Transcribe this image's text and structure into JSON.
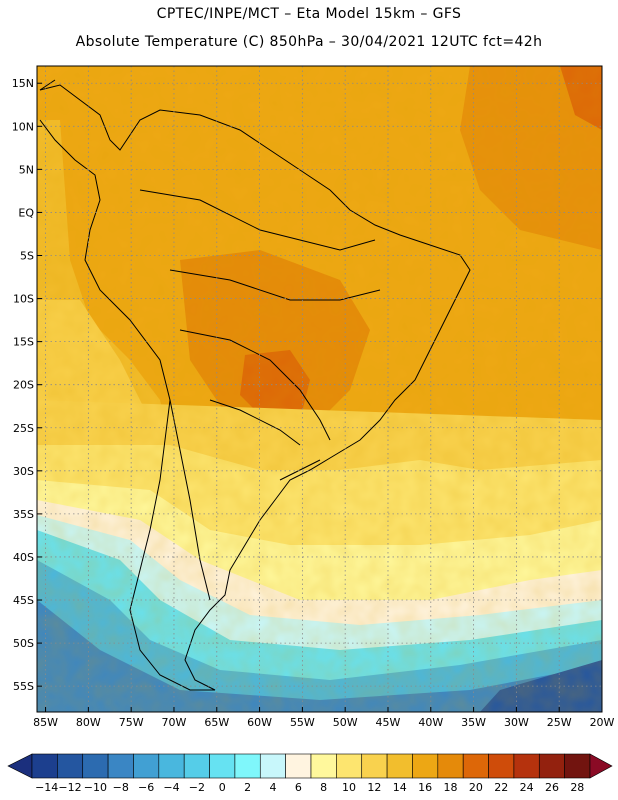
{
  "header": {
    "line1": "CPTEC/INPE/MCT –   Eta Model 15km – GFS",
    "line2": "Absolute Temperature (C) 850hPa – 30/04/2021 12UTC fct=42h"
  },
  "axes": {
    "lat_labels": [
      "15N",
      "10N",
      "5N",
      "EQ",
      "5S",
      "10S",
      "15S",
      "20S",
      "25S",
      "30S",
      "35S",
      "40S",
      "45S",
      "50S",
      "55S"
    ],
    "lon_labels": [
      "85W",
      "80W",
      "75W",
      "70W",
      "65W",
      "60W",
      "55W",
      "50W",
      "45W",
      "40W",
      "35W",
      "30W",
      "25W",
      "20W"
    ]
  },
  "colorbar": {
    "labels": [
      "-14",
      "-12",
      "-10",
      "-8",
      "-6",
      "-4",
      "-2",
      "0",
      "2",
      "4",
      "6",
      "8",
      "10",
      "12",
      "14",
      "16",
      "18",
      "20",
      "22",
      "24",
      "26",
      "28"
    ],
    "colors": [
      "#1c3f8e",
      "#2456a0",
      "#2c6bb0",
      "#3a86c4",
      "#41a0d3",
      "#49b7de",
      "#55cde8",
      "#66e2f2",
      "#7ff7fb",
      "#c8f7fb",
      "#fff4e0",
      "#fff89c",
      "#fde56f",
      "#f9d24e",
      "#f2be2d",
      "#eda714",
      "#e58a0a",
      "#dd6708",
      "#cf4c0a",
      "#b5320d",
      "#93210e",
      "#72140f"
    ],
    "end_low": "#1b2f7d",
    "end_high": "#8a0a25"
  }
}
